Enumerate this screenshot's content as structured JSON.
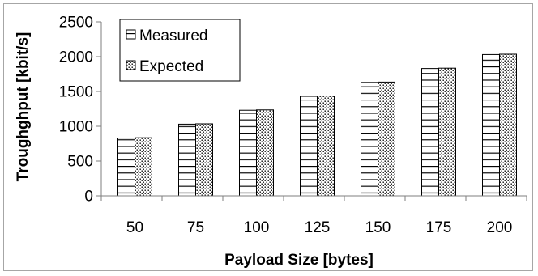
{
  "chart_data": {
    "type": "bar",
    "title": "",
    "xlabel": "Payload Size [bytes]",
    "ylabel": "Troughghput [kbit/s]",
    "categories": [
      "50",
      "75",
      "100",
      "125",
      "150",
      "175",
      "200"
    ],
    "series": [
      {
        "name": "Measured",
        "values": [
          830,
          1030,
          1230,
          1430,
          1630,
          1830,
          2030
        ],
        "pattern": "horizontal-lines"
      },
      {
        "name": "Expected",
        "values": [
          835,
          1035,
          1235,
          1435,
          1635,
          1835,
          2035
        ],
        "pattern": "dots"
      }
    ],
    "ylim": [
      0,
      2500
    ],
    "yticks": [
      "0",
      "500",
      "1000",
      "1500",
      "2000",
      "2500"
    ],
    "grid": false,
    "legend_position": "top-left"
  }
}
